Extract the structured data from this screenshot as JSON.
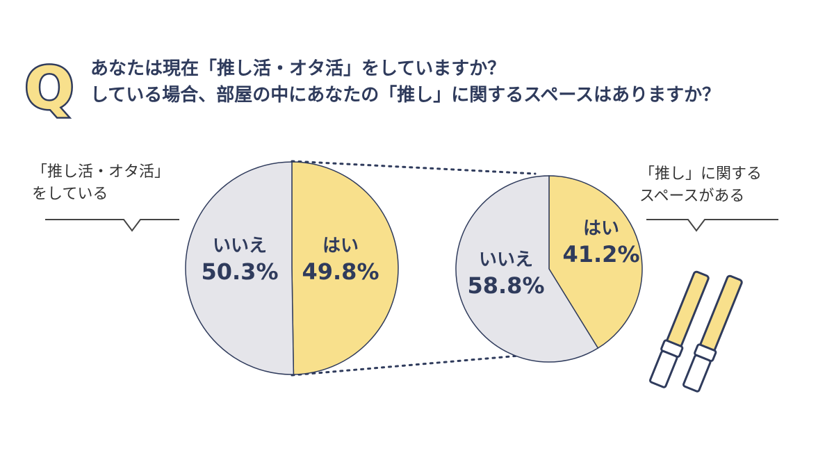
{
  "question": {
    "badge": "Q",
    "line1": "あなたは現在「推し活・オタ活」をしていますか？",
    "line2": "している場合、部屋の中にあなたの「推し」に関するスペースはありますか？"
  },
  "callouts": {
    "left_line1": "「推し活・オタ活」",
    "left_line2": "をしている",
    "right_line1": "「推し」に関する",
    "right_line2": "スペースがある"
  },
  "colors": {
    "yes": "#f8e08c",
    "no": "#e5e5ea",
    "text": "#2f3b5c",
    "badge": "#f8e08c"
  },
  "chart_data": [
    {
      "type": "pie",
      "title": "",
      "slices": [
        {
          "label": "はい",
          "value": 49.8,
          "value_label": "49.8%"
        },
        {
          "label": "いいえ",
          "value": 50.3,
          "value_label": "50.3%"
        }
      ]
    },
    {
      "type": "pie",
      "title": "",
      "slices": [
        {
          "label": "はい",
          "value": 41.2,
          "value_label": "41.2%"
        },
        {
          "label": "いいえ",
          "value": 58.8,
          "value_label": "58.8%"
        }
      ]
    }
  ]
}
